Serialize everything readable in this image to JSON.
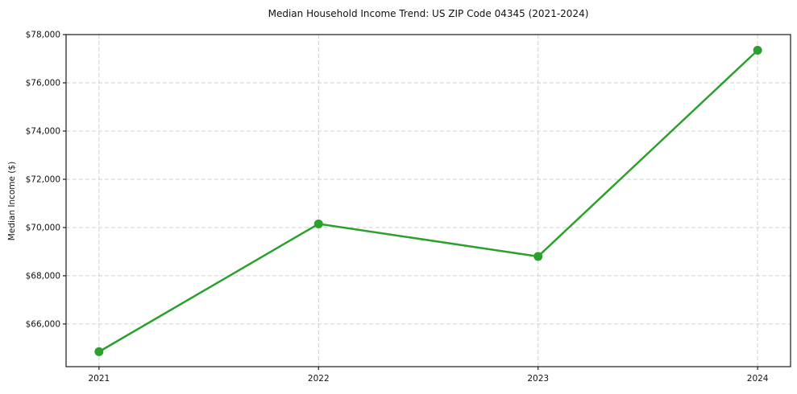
{
  "chart_data": {
    "type": "line",
    "title": "Median Household Income Trend: US ZIP Code 04345 (2021-2024)",
    "xlabel": "",
    "ylabel": "Median Income ($)",
    "x": [
      2021,
      2022,
      2023,
      2024
    ],
    "series": [
      {
        "name": "Median Household Income",
        "values": [
          64850,
          70150,
          68800,
          77350
        ]
      }
    ],
    "xtick_labels": [
      "2021",
      "2022",
      "2023",
      "2024"
    ],
    "yticks": [
      66000,
      68000,
      70000,
      72000,
      74000,
      76000,
      78000
    ],
    "ytick_labels": [
      "$66,000",
      "$68,000",
      "$70,000",
      "$72,000",
      "$74,000",
      "$76,000",
      "$78,000"
    ],
    "xlim": [
      2020.85,
      2024.15
    ],
    "ylim": [
      64230,
      78000
    ],
    "grid": true,
    "grid_style": "dashed",
    "legend_position": "none",
    "line_color": "#2ca02c",
    "marker": "circle",
    "grid_color": "#cfcfcf",
    "axis_color": "#1a1a1a",
    "text_color": "#111111",
    "background_color": "#ffffff"
  }
}
